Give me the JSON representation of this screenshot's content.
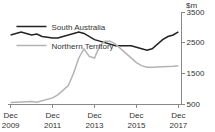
{
  "chart_data": {
    "type": "line",
    "y_label": "$m",
    "categories": [
      "Dec 2009",
      null,
      null,
      null,
      null,
      null,
      null,
      null,
      "Dec 2011",
      null,
      null,
      null,
      null,
      null,
      null,
      null,
      "Dec 2013",
      null,
      null,
      null,
      null,
      null,
      null,
      null,
      "Dec 2015",
      null,
      null,
      null,
      null,
      null,
      null,
      null,
      "Dec 2017"
    ],
    "series": [
      {
        "name": "South Australia",
        "color": "#222222",
        "values": [
          2750,
          2800,
          2850,
          2800,
          2750,
          2780,
          2700,
          2680,
          2650,
          2650,
          2700,
          2750,
          2800,
          2850,
          2800,
          2700,
          2600,
          2550,
          2500,
          2450,
          2400,
          2400,
          2400,
          2400,
          2350,
          2300,
          2250,
          2300,
          2450,
          2600,
          2700,
          2750,
          2850
        ]
      },
      {
        "name": "Northern Territory",
        "color": "#b3b3b3",
        "values": [
          550,
          560,
          560,
          580,
          580,
          560,
          600,
          650,
          700,
          800,
          950,
          1100,
          1500,
          2000,
          2300,
          2050,
          2000,
          2400,
          2550,
          2550,
          2450,
          2300,
          2150,
          2000,
          1850,
          1750,
          1700,
          1700,
          1700,
          1720,
          1720,
          1730,
          1750
        ]
      }
    ],
    "ylim": [
      500,
      3500
    ],
    "yticks": [
      500,
      1500,
      2500,
      3500
    ],
    "grid": false,
    "legend": "top-left"
  }
}
